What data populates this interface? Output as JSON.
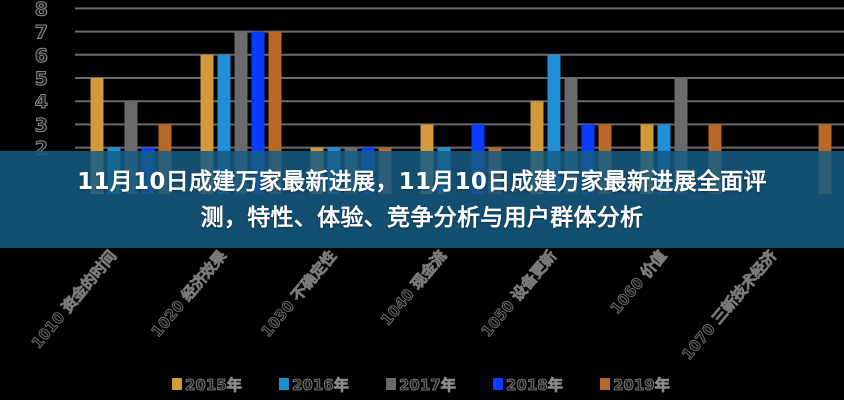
{
  "headline": "11月10日成建万家最新进展，11月10日成建万家最新进展全面评测，特性、体验、竞争分析与用户群体分析",
  "chart_data": {
    "type": "bar",
    "title": "",
    "xlabel": "",
    "ylabel": "",
    "ylim": [
      0,
      8
    ],
    "yticks_visible": [
      2,
      3,
      4,
      5,
      6,
      7,
      8
    ],
    "grid": true,
    "legend_position": "bottom",
    "categories": [
      "1010 资金的时间",
      "1020 经济效果",
      "1030 不确定性",
      "1040 现金流",
      "1050 设备更新",
      "1060 价值",
      "1070 三新技术经济"
    ],
    "series": [
      {
        "name": "2015年",
        "color": "#d39a3c",
        "values": [
          5,
          6,
          2,
          3,
          4,
          3,
          null
        ]
      },
      {
        "name": "2016年",
        "color": "#1f8fd6",
        "values": [
          2,
          6,
          2,
          2,
          6,
          3,
          null
        ]
      },
      {
        "name": "2017年",
        "color": "#6b6b6b",
        "values": [
          4,
          7,
          2,
          null,
          5,
          5,
          null
        ]
      },
      {
        "name": "2018年",
        "color": "#0a3cff",
        "values": [
          2,
          7,
          2,
          3,
          3,
          null,
          null
        ]
      },
      {
        "name": "2019年",
        "color": "#b8692a",
        "values": [
          3,
          7,
          2,
          2,
          3,
          3,
          3
        ]
      }
    ]
  }
}
